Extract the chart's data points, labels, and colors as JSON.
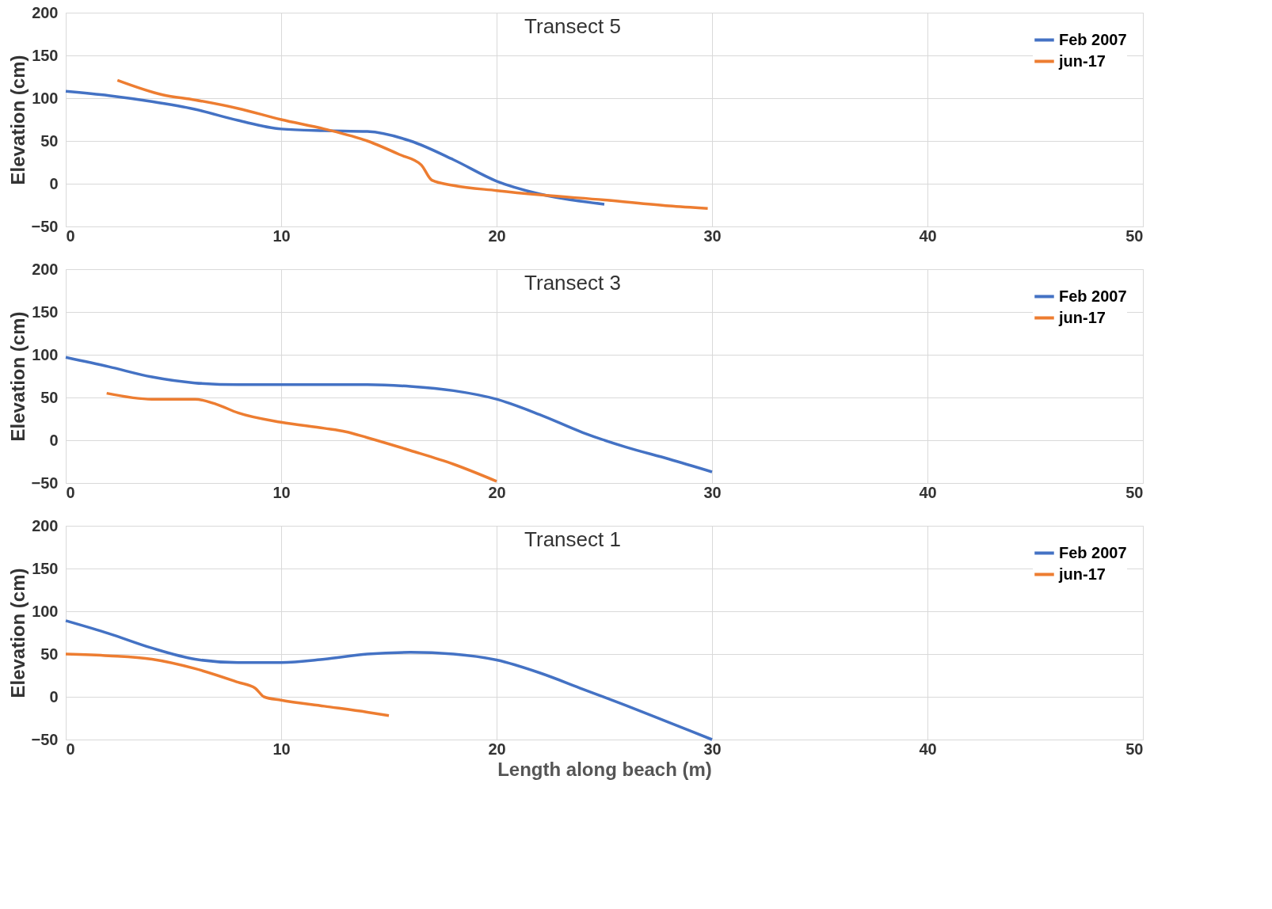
{
  "chart_data": [
    {
      "type": "line",
      "title": "Transect 5",
      "ylabel": "Elevation (cm)",
      "xlim": [
        0,
        50
      ],
      "xticks": [
        0,
        10,
        20,
        30,
        40,
        50
      ],
      "ylim": [
        -50,
        200
      ],
      "yticks": [
        -50,
        0,
        50,
        100,
        150,
        200
      ],
      "grid": true,
      "legend": "top right",
      "tick_labels": true,
      "series": [
        {
          "name": "Feb 2007",
          "color": "#4472c4",
          "x": [
            0,
            2,
            4,
            6,
            8,
            10,
            12,
            14,
            16,
            18,
            20,
            22,
            25
          ],
          "values": [
            108,
            103,
            96,
            87,
            74,
            64,
            62,
            61,
            50,
            28,
            3,
            -12,
            -24
          ]
        },
        {
          "name": "jun-17",
          "color": "#ed7d31",
          "x": [
            2.4,
            4.5,
            6,
            8,
            10,
            12,
            14,
            15.5,
            16.5,
            17,
            18,
            20,
            22,
            25,
            28,
            29.8
          ],
          "values": [
            121,
            104,
            98,
            88,
            75,
            64,
            50,
            34,
            22,
            4,
            -2,
            -8,
            -13,
            -19,
            -26,
            -29
          ]
        }
      ]
    },
    {
      "type": "line",
      "title": "Transect 3",
      "ylabel": "Elevation (cm)",
      "xlim": [
        0,
        50
      ],
      "xticks": [
        0,
        10,
        20,
        30,
        40,
        50
      ],
      "ylim": [
        -50,
        200
      ],
      "yticks": [
        -50,
        0,
        50,
        100,
        150,
        200
      ],
      "grid": true,
      "legend": "top right",
      "series": [
        {
          "name": "Feb 2007",
          "color": "#4472c4",
          "x": [
            0,
            2,
            4,
            6,
            8,
            10,
            12,
            14,
            16,
            18,
            20,
            22,
            24,
            26,
            28,
            30
          ],
          "values": [
            97,
            86,
            74,
            67,
            65,
            65,
            65,
            65,
            63,
            58,
            48,
            30,
            9,
            -8,
            -22,
            -37
          ]
        },
        {
          "name": "jun-17",
          "color": "#ed7d31",
          "x": [
            1.9,
            4,
            6,
            7,
            8,
            10,
            12,
            13,
            14,
            16,
            18,
            20
          ],
          "values": [
            55,
            48,
            48,
            42,
            32,
            21,
            14,
            10,
            3,
            -12,
            -28,
            -48
          ]
        }
      ]
    },
    {
      "type": "line",
      "title": "Transect 1",
      "xlabel": "Length along beach (m)",
      "ylabel": "Elevation (cm)",
      "xlim": [
        0,
        50
      ],
      "xticks": [
        0,
        10,
        20,
        30,
        40,
        50
      ],
      "ylim": [
        -50,
        200
      ],
      "yticks": [
        -50,
        0,
        50,
        100,
        150,
        200
      ],
      "grid": true,
      "legend": "top right",
      "series": [
        {
          "name": "Feb 2007",
          "color": "#4472c4",
          "x": [
            0,
            2,
            4,
            6,
            8,
            10,
            12,
            14,
            16,
            18,
            20,
            22,
            24,
            26,
            28,
            30
          ],
          "values": [
            89,
            74,
            57,
            44,
            40,
            40,
            44,
            50,
            52,
            50,
            43,
            28,
            9,
            -10,
            -30,
            -50
          ]
        },
        {
          "name": "jun-17",
          "color": "#ed7d31",
          "x": [
            0,
            2,
            4,
            6,
            8,
            8.8,
            9.2,
            10,
            12,
            14,
            15
          ],
          "values": [
            50,
            48,
            44,
            33,
            17,
            10,
            0,
            -4,
            -11,
            -18,
            -22
          ]
        }
      ]
    }
  ]
}
